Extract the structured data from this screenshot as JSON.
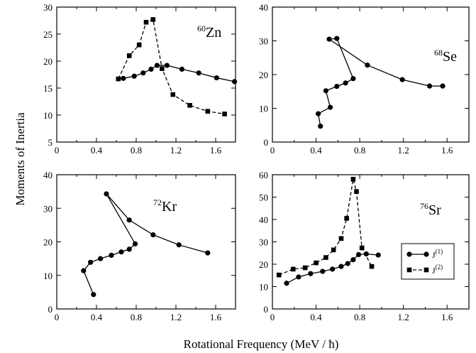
{
  "figure": {
    "ylabel": "Moments of Inertia",
    "xlabel": "Rotational Frequency (MeV / ",
    "xlabel_hbar": "ħ",
    "xlabel_end": ")"
  },
  "legend": {
    "location": "inside Sr panel, right",
    "entries": [
      {
        "base": "J",
        "sup": "(1)",
        "marker": "circle",
        "line": "solid"
      },
      {
        "base": "J",
        "sup": "(2)",
        "marker": "square",
        "line": "dashed"
      }
    ]
  },
  "chart_data": [
    {
      "type": "line",
      "nucleus": {
        "mass": "60",
        "symbol": "Zn"
      },
      "xlim": [
        0,
        1.8
      ],
      "ylim": [
        5,
        30
      ],
      "xticks": [
        "0",
        "0.4",
        "0.8",
        "1.2",
        "1.6"
      ],
      "yticks": [
        "5",
        "10",
        "15",
        "20",
        "25",
        "30"
      ],
      "series": [
        {
          "key": "J1",
          "marker": "circle",
          "dash": false,
          "x": [
            0.67,
            0.78,
            0.87,
            0.95,
            1.01,
            1.11,
            1.26,
            1.43,
            1.61,
            1.79
          ],
          "y": [
            16.8,
            17.2,
            17.8,
            18.5,
            19.2,
            19.2,
            18.5,
            17.8,
            16.9,
            16.2
          ]
        },
        {
          "key": "J2",
          "marker": "square",
          "dash": true,
          "x": [
            0.62,
            0.73,
            0.83,
            0.9,
            0.97,
            1.06,
            1.17,
            1.34,
            1.52,
            1.69
          ],
          "y": [
            16.7,
            21.0,
            23.0,
            27.2,
            27.7,
            18.6,
            13.8,
            11.8,
            10.7,
            10.2
          ]
        }
      ]
    },
    {
      "type": "line",
      "nucleus": {
        "mass": "68",
        "symbol": "Se"
      },
      "xlim": [
        0,
        1.8
      ],
      "ylim": [
        0,
        40
      ],
      "xticks": [
        "0",
        "0.4",
        "0.8",
        "1.2",
        "1.6"
      ],
      "yticks": [
        "0",
        "10",
        "20",
        "30",
        "40"
      ],
      "series": [
        {
          "key": "J1",
          "marker": "circle",
          "dash": false,
          "x": [
            0.44,
            0.42,
            0.53,
            0.49,
            0.59,
            0.67,
            0.74,
            0.59,
            0.52,
            0.87,
            1.19,
            1.44,
            1.56
          ],
          "y": [
            4.7,
            8.4,
            10.3,
            15.2,
            16.5,
            17.5,
            18.8,
            30.7,
            30.5,
            22.8,
            18.5,
            16.6,
            16.6
          ]
        }
      ]
    },
    {
      "type": "line",
      "nucleus": {
        "mass": "72",
        "symbol": "Kr"
      },
      "xlim": [
        0,
        1.8
      ],
      "ylim": [
        0,
        40
      ],
      "xticks": [
        "0",
        "0.4",
        "0.8",
        "1.2",
        "1.6"
      ],
      "yticks": [
        "0",
        "10",
        "20",
        "30",
        "40"
      ],
      "series": [
        {
          "key": "J1",
          "marker": "circle",
          "dash": false,
          "x": [
            0.37,
            0.27,
            0.34,
            0.44,
            0.55,
            0.65,
            0.73,
            0.79,
            0.5,
            0.73,
            0.97,
            1.23,
            1.52
          ],
          "y": [
            4.3,
            11.4,
            13.9,
            15.0,
            16.0,
            17.0,
            17.8,
            19.4,
            34.3,
            26.5,
            22.1,
            19.1,
            16.7
          ]
        }
      ]
    },
    {
      "type": "line",
      "nucleus": {
        "mass": "76",
        "symbol": "Sr"
      },
      "xlim": [
        0,
        1.8
      ],
      "ylim": [
        0,
        60
      ],
      "xticks": [
        "0",
        "0.4",
        "0.8",
        "1.2",
        "1.6"
      ],
      "yticks": [
        "0",
        "10",
        "20",
        "30",
        "40",
        "50",
        "60"
      ],
      "series": [
        {
          "key": "J1",
          "marker": "circle",
          "dash": false,
          "x": [
            0.13,
            0.24,
            0.35,
            0.46,
            0.55,
            0.63,
            0.69,
            0.74,
            0.79,
            0.86,
            0.97
          ],
          "y": [
            11.5,
            14.3,
            15.8,
            16.8,
            17.8,
            19.0,
            20.3,
            22.0,
            24.3,
            24.6,
            24.1
          ]
        },
        {
          "key": "J2",
          "marker": "square",
          "dash": true,
          "x": [
            0.06,
            0.19,
            0.3,
            0.4,
            0.49,
            0.56,
            0.63,
            0.68,
            0.74,
            0.77,
            0.82,
            0.91
          ],
          "y": [
            15.2,
            17.8,
            18.4,
            20.6,
            23.0,
            26.4,
            31.5,
            40.5,
            58.0,
            52.5,
            27.3,
            19.0
          ]
        }
      ]
    }
  ]
}
